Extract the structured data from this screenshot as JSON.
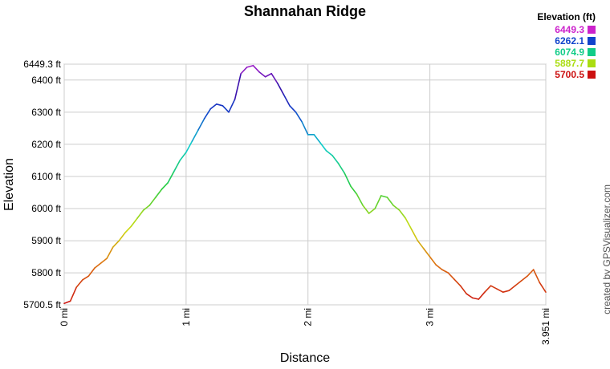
{
  "chart_data": {
    "type": "line",
    "title": "Shannahan Ridge",
    "xlabel": "Distance",
    "ylabel": "Elevation",
    "ylim": [
      5700.5,
      6449.3
    ],
    "xlim": [
      0,
      3.951
    ],
    "y_ticks": [
      {
        "value": 5700.5,
        "label": "5700.5 ft"
      },
      {
        "value": 5800,
        "label": "5800 ft"
      },
      {
        "value": 5900,
        "label": "5900 ft"
      },
      {
        "value": 6000,
        "label": "6000 ft"
      },
      {
        "value": 6100,
        "label": "6100 ft"
      },
      {
        "value": 6200,
        "label": "6200 ft"
      },
      {
        "value": 6300,
        "label": "6300 ft"
      },
      {
        "value": 6400,
        "label": "6400 ft"
      },
      {
        "value": 6449.3,
        "label": "6449.3 ft"
      }
    ],
    "x_ticks": [
      {
        "value": 0,
        "label": "0 mi"
      },
      {
        "value": 1,
        "label": "1 mi"
      },
      {
        "value": 2,
        "label": "2 mi"
      },
      {
        "value": 3,
        "label": "3 mi"
      },
      {
        "value": 3.951,
        "label": "3.951 mi"
      }
    ],
    "grid": true,
    "legend": {
      "title": "Elevation (ft)",
      "placement": "top-right",
      "entries": [
        {
          "label": "6449.3",
          "color": "#cc22cc"
        },
        {
          "label": "6262.1",
          "color": "#1144cc"
        },
        {
          "label": "6074.9",
          "color": "#11cc88"
        },
        {
          "label": "5887.7",
          "color": "#aadd11"
        },
        {
          "label": "5700.5",
          "color": "#cc1111"
        }
      ]
    },
    "series": [
      {
        "x": [
          0,
          0.05,
          0.1,
          0.15,
          0.2,
          0.25,
          0.3,
          0.35,
          0.4,
          0.45,
          0.5,
          0.55,
          0.6,
          0.65,
          0.7,
          0.75,
          0.8,
          0.85,
          0.9,
          0.95,
          1.0,
          1.05,
          1.1,
          1.15,
          1.2,
          1.25,
          1.3,
          1.35,
          1.4,
          1.45,
          1.5,
          1.55,
          1.6,
          1.65,
          1.7,
          1.75,
          1.8,
          1.85,
          1.9,
          1.95,
          2.0,
          2.05,
          2.1,
          2.15,
          2.2,
          2.25,
          2.3,
          2.35,
          2.4,
          2.45,
          2.5,
          2.55,
          2.6,
          2.65,
          2.7,
          2.75,
          2.8,
          2.85,
          2.9,
          2.95,
          3.0,
          3.05,
          3.1,
          3.15,
          3.2,
          3.25,
          3.3,
          3.35,
          3.4,
          3.45,
          3.5,
          3.55,
          3.6,
          3.65,
          3.7,
          3.75,
          3.8,
          3.85,
          3.9,
          3.951
        ],
        "y": [
          5705,
          5712,
          5755,
          5778,
          5790,
          5815,
          5830,
          5845,
          5880,
          5900,
          5925,
          5945,
          5970,
          5995,
          6010,
          6035,
          6060,
          6080,
          6115,
          6150,
          6175,
          6210,
          6245,
          6280,
          6310,
          6325,
          6320,
          6300,
          6340,
          6420,
          6440,
          6445,
          6425,
          6410,
          6420,
          6390,
          6355,
          6320,
          6300,
          6270,
          6230,
          6230,
          6205,
          6180,
          6165,
          6140,
          6110,
          6070,
          6045,
          6010,
          5985,
          6000,
          6040,
          6035,
          6010,
          5995,
          5970,
          5935,
          5900,
          5875,
          5850,
          5825,
          5810,
          5800,
          5780,
          5760,
          5735,
          5722,
          5718,
          5740,
          5760,
          5750,
          5740,
          5745,
          5760,
          5775,
          5790,
          5810,
          5770,
          5740
        ]
      }
    ]
  },
  "credit": "created by GPSVisualizer.com"
}
